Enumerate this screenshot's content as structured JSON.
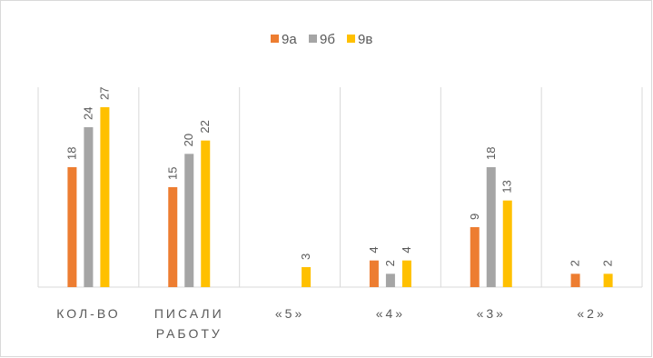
{
  "chart_data": {
    "type": "bar",
    "title": "",
    "xlabel": "",
    "ylabel": "",
    "ylim": [
      0,
      30
    ],
    "grid": "vertical category separators",
    "legend_position": "top",
    "categories": [
      [
        "КОЛ-ВО"
      ],
      [
        "ПИСАЛИ",
        "РАБОТУ"
      ],
      [
        "«5»"
      ],
      [
        "«4»"
      ],
      [
        "«3»"
      ],
      [
        "«2»"
      ]
    ],
    "series": [
      {
        "name": "9а",
        "color": "#ed7d31",
        "values": [
          18,
          15,
          null,
          4,
          9,
          2
        ]
      },
      {
        "name": "9б",
        "color": "#a5a5a5",
        "values": [
          24,
          20,
          null,
          2,
          18,
          null
        ]
      },
      {
        "name": "9в",
        "color": "#ffc000",
        "values": [
          27,
          22,
          3,
          4,
          13,
          2
        ]
      }
    ]
  }
}
